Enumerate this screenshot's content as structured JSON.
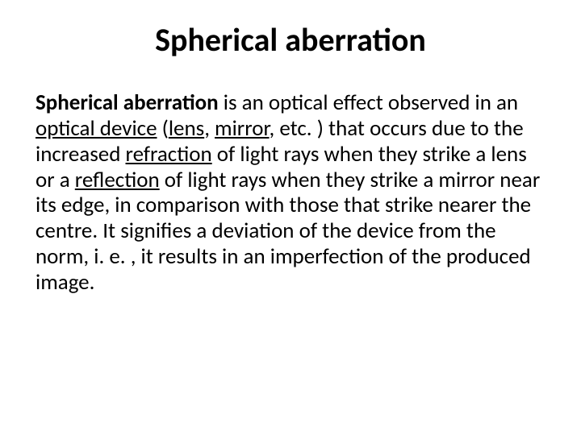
{
  "colors": {
    "background": "#ffffff",
    "text": "#000000"
  },
  "typography": {
    "family": "Calibri",
    "title_fontsize_pt": 40,
    "body_fontsize_pt": 27,
    "title_weight": 700,
    "body_weight": 400,
    "line_height": 1.18
  },
  "title": "Spherical aberration",
  "body": {
    "term_bold": "Spherical aberration",
    "seg1": " is an optical effect observed in an ",
    "link_optical_device": "optical device",
    "seg2": " (",
    "link_lens": "lens",
    "seg3": ", ",
    "link_mirror": "mirror",
    "seg4": ", etc. ) that occurs due to the increased ",
    "link_refraction": "refraction",
    "seg5": " of light rays when they strike a lens or a ",
    "link_reflection": "reflection",
    "seg6": " of light rays when they strike a mirror near its edge, in comparison with those that strike nearer the centre. It signifies a deviation of the device from the norm, i. e. , it results in an imperfection of the produced image."
  }
}
